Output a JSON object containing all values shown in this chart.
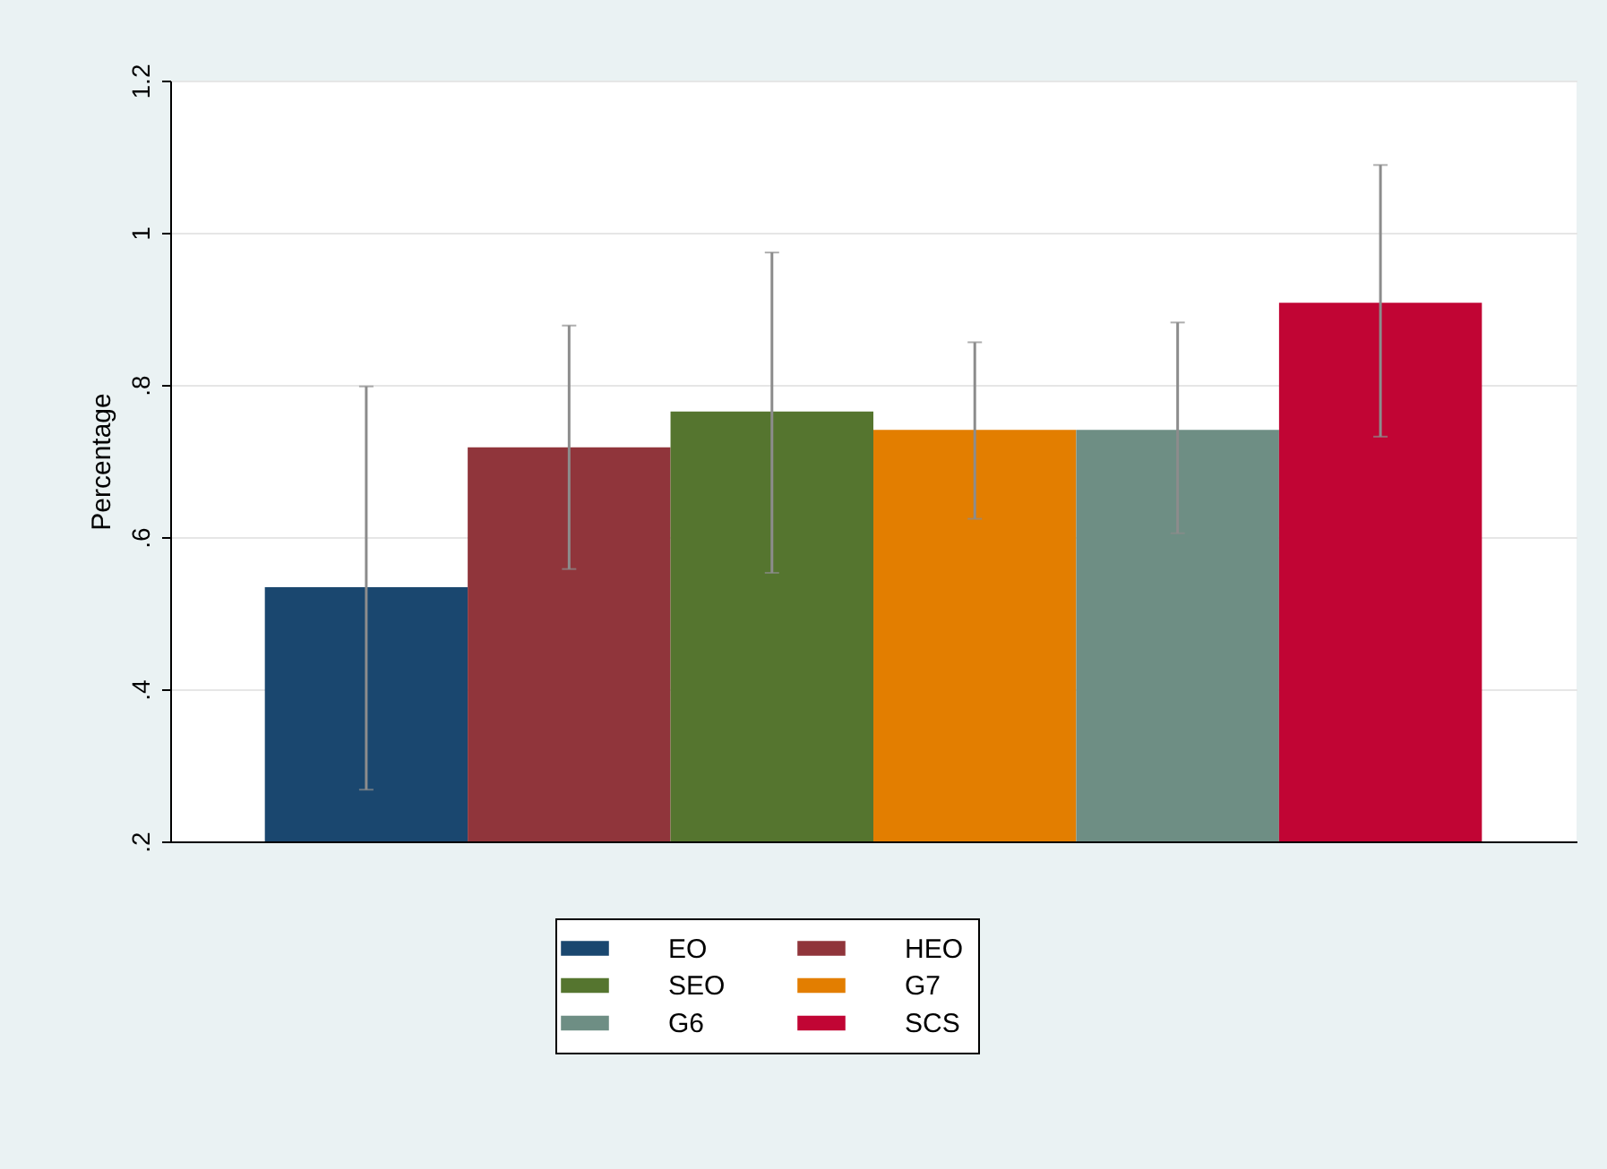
{
  "chart_data": {
    "type": "bar",
    "ylabel": "Percentage",
    "categories": [
      null
    ],
    "ylim": [
      0.2,
      1.2
    ],
    "yticks": [
      {
        "value": 0.2,
        "label": ".2"
      },
      {
        "value": 0.4,
        "label": ".4"
      },
      {
        "value": 0.6,
        "label": ".6"
      },
      {
        "value": 0.8,
        "label": ".8"
      },
      {
        "value": 1,
        "label": "1"
      },
      {
        "value": 1.2,
        "label": "1.2"
      }
    ],
    "grid": "y",
    "legend": "bottom",
    "series": [
      {
        "name": "EO",
        "color": "#1a476f",
        "values": [
          0.534
        ],
        "errors": [
          [
            0.268,
            0.798
          ]
        ]
      },
      {
        "name": "HEO",
        "color": "#90353b",
        "values": [
          0.718
        ],
        "errors": [
          [
            0.558,
            0.878
          ]
        ]
      },
      {
        "name": "SEO",
        "color": "#55752f",
        "values": [
          0.765
        ],
        "errors": [
          [
            0.553,
            0.974
          ]
        ]
      },
      {
        "name": "G7",
        "color": "#e37e00",
        "values": [
          0.741
        ],
        "errors": [
          [
            0.624,
            0.856
          ]
        ]
      },
      {
        "name": "G6",
        "color": "#6e8e84",
        "values": [
          0.741
        ],
        "errors": [
          [
            0.605,
            0.882
          ]
        ]
      },
      {
        "name": "SCS",
        "color": "#c10534",
        "values": [
          0.908
        ],
        "errors": [
          [
            0.732,
            1.089
          ]
        ]
      }
    ]
  }
}
